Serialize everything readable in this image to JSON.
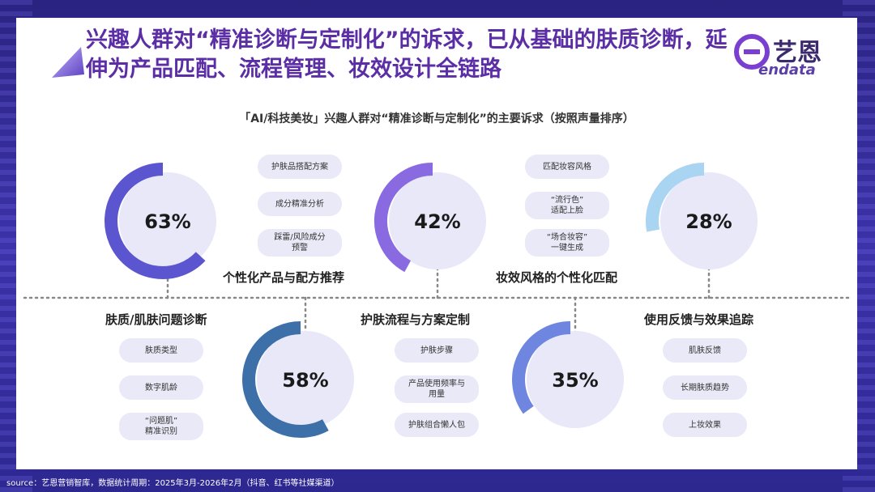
{
  "title": "兴趣人群对“精准诊断与定制化”的诉求，已从基础的肤质诊断，延伸为产品匹配、流程管理、妆效设计全链路",
  "logo": {
    "name": "艺恩",
    "sub": "endata"
  },
  "colors": {
    "title": "#5b2ea6",
    "track": "#e8e8f8",
    "accent_dark": "#3d6fa8",
    "accent_purple": "#6a55d8"
  },
  "chart_data": {
    "type": "donut-grid",
    "title": "「AI/科技美妆」兴趣人群对“精准诊断与定制化”的主要诉求（按照声量排序）",
    "series": [
      {
        "name": "肤质/肌肤问题诊断",
        "percent": 63,
        "label": "63%",
        "color": "#5b55d0",
        "sub_items": [
          "肤质类型",
          "数字肌龄",
          "“问题肌”\n精准识别"
        ]
      },
      {
        "name": "个性化产品与配方推荐",
        "percent": 58,
        "label": "58%",
        "color": "#3d6fa8",
        "sub_items": [
          "护肤品搭配方案",
          "成分精准分析",
          "踩雷/风险成分\n预警"
        ]
      },
      {
        "name": "护肤流程与方案定制",
        "percent": 42,
        "label": "42%",
        "color": "#8a6ae0",
        "sub_items": [
          "护肤步骤",
          "产品使用频率与\n用量",
          "护肤组合懒人包"
        ]
      },
      {
        "name": "妆效风格的个性化匹配",
        "percent": 35,
        "label": "35%",
        "color": "#6f86e0",
        "sub_items": [
          "匹配妆容风格",
          "“流行色”\n适配上脸",
          "“场合妆容”\n一键生成"
        ]
      },
      {
        "name": "使用反馈与效果追踪",
        "percent": 28,
        "label": "28%",
        "color": "#a9d4f2",
        "sub_items": [
          "肌肤反馈",
          "长期肤质趋势",
          "上妆效果"
        ]
      }
    ]
  },
  "source": "source：艺恩营销智库，数据统计周期：2025年3月-2026年2月（抖音、红书等社媒渠道）"
}
